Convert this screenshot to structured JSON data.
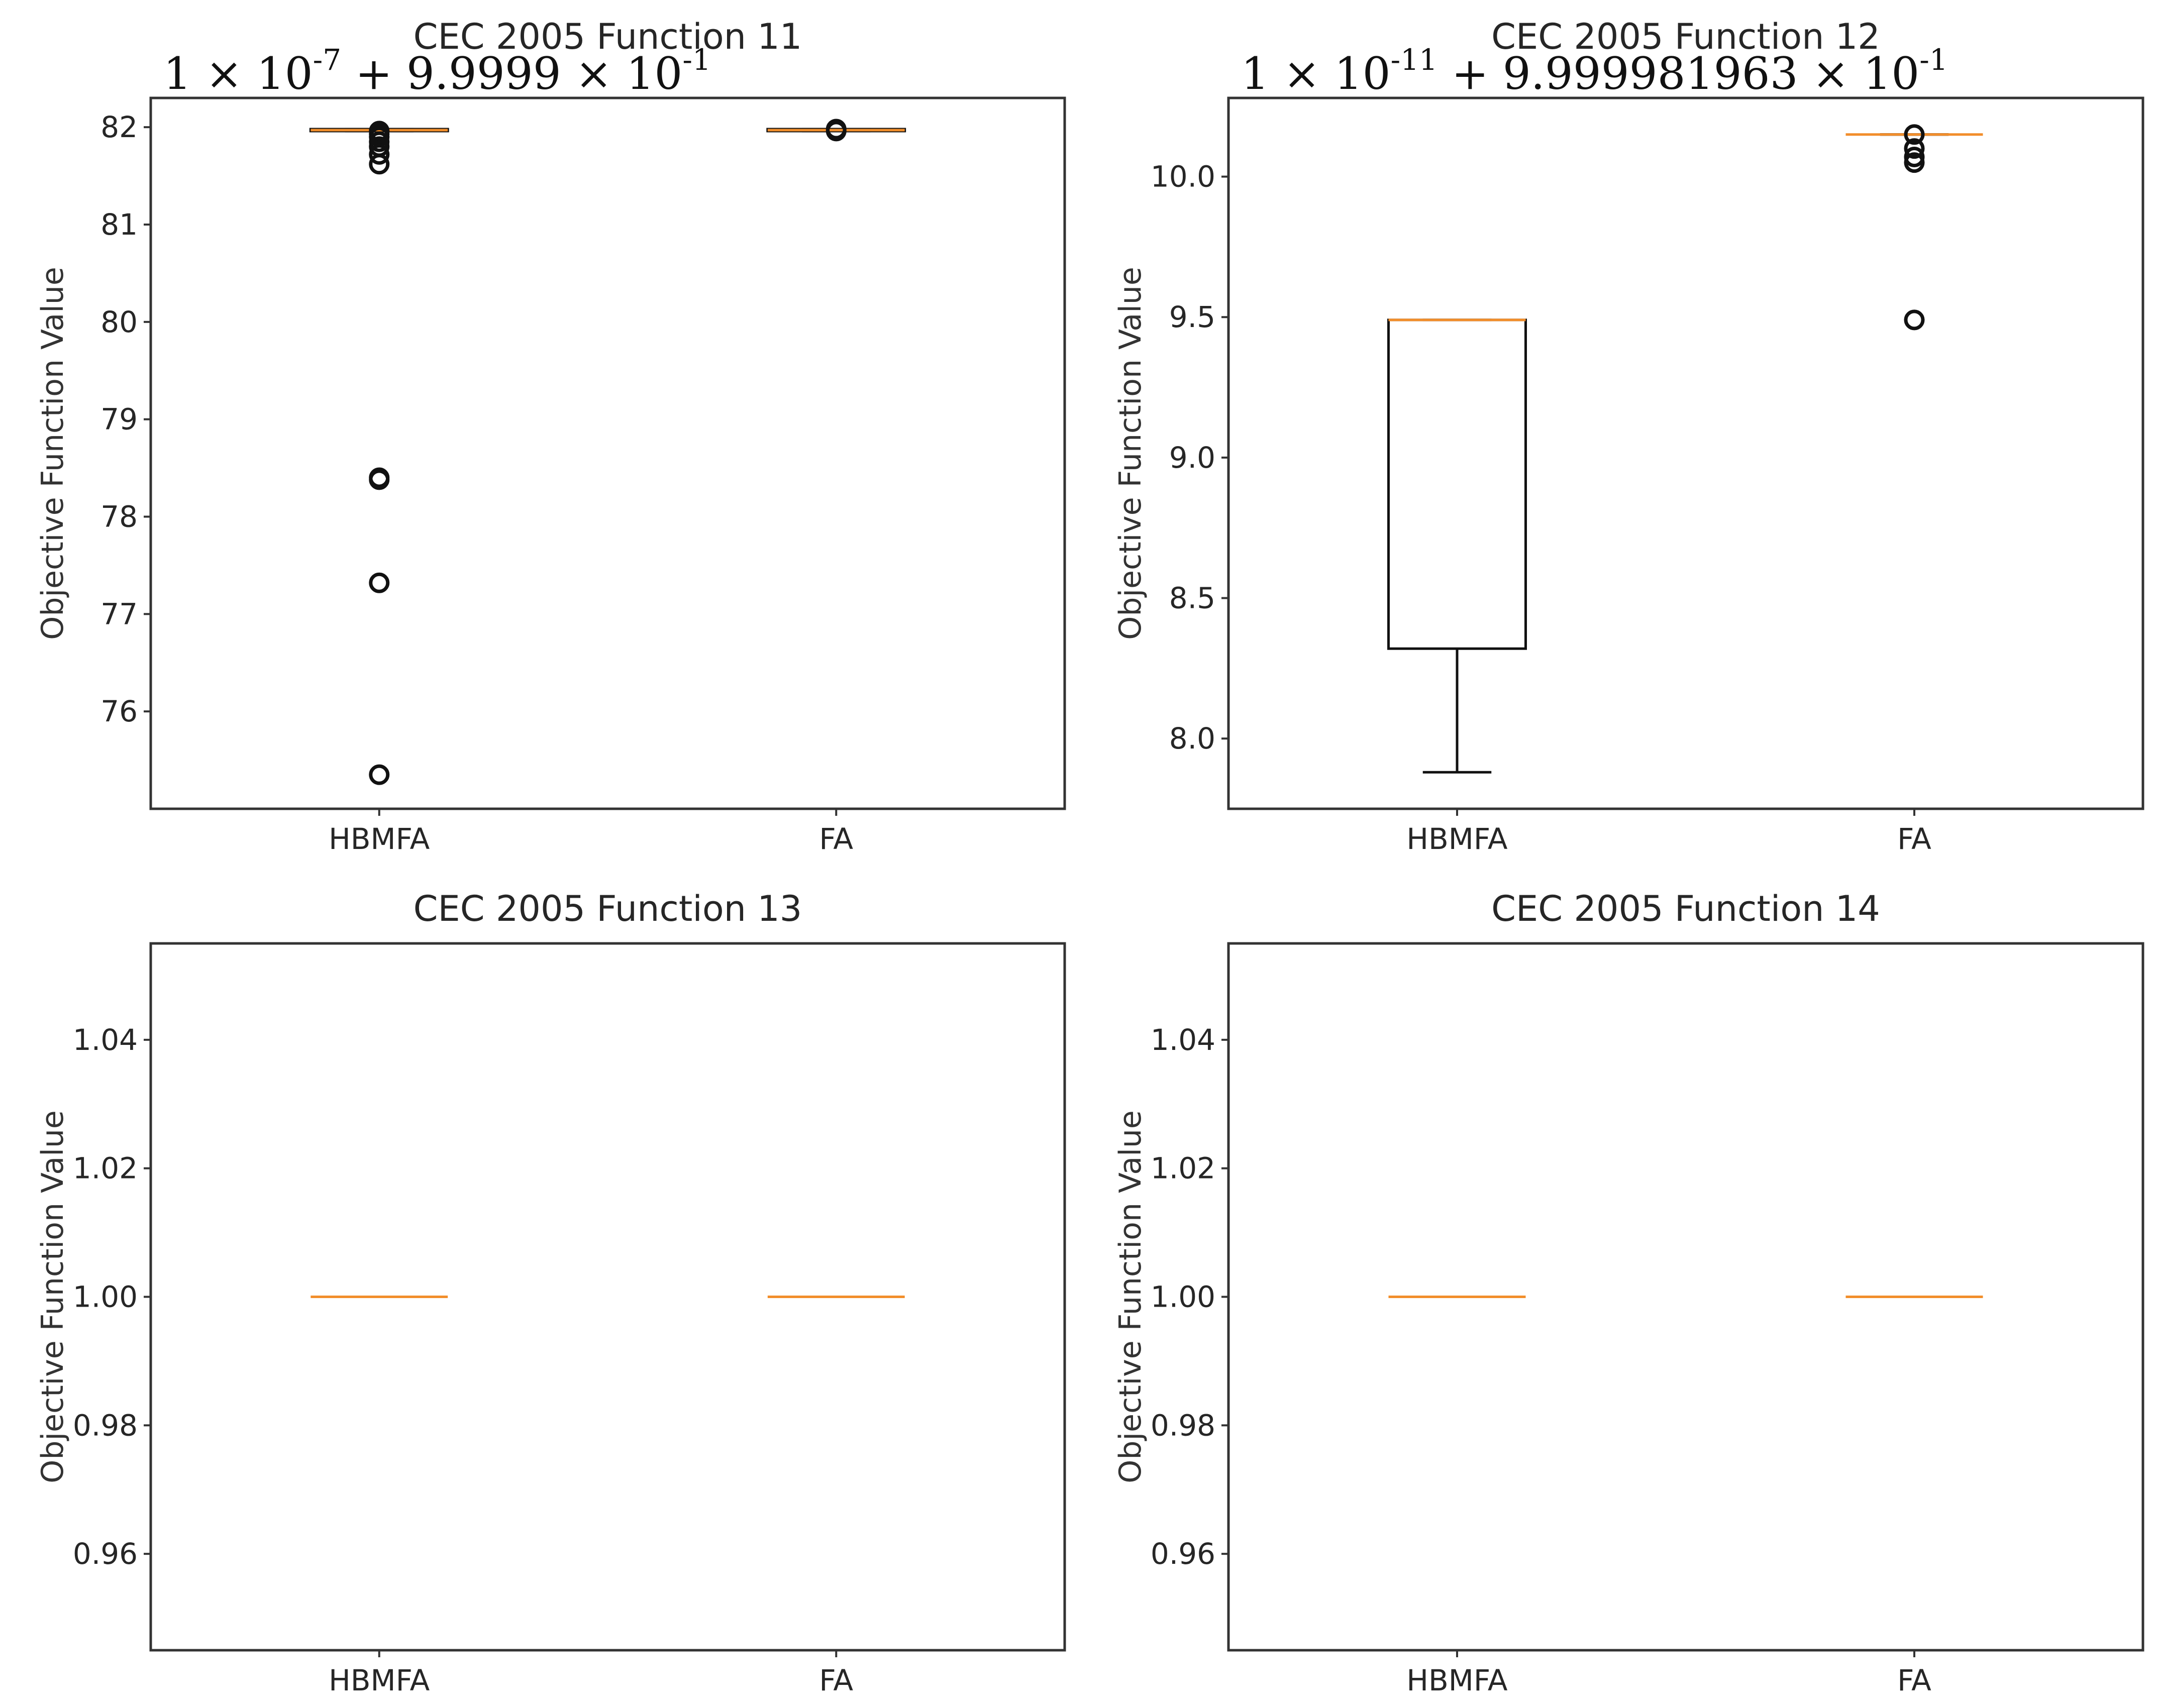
{
  "chart_data": [
    {
      "type": "box",
      "title": "CEC 2005 Function 11",
      "offset_text": {
        "prefix": "1 × 10",
        "exp1": "-7",
        "middle": " + 9.9999 × 10",
        "exp2": "-1"
      },
      "ylabel": "Objective Function Value",
      "categories": [
        "HBMFA",
        "FA"
      ],
      "ylim": [
        75.0,
        82.3
      ],
      "yticks": [
        76,
        77,
        78,
        79,
        80,
        81,
        82
      ],
      "ytick_labels": [
        "76",
        "77",
        "78",
        "79",
        "80",
        "81",
        "82"
      ],
      "boxes": [
        {
          "name": "HBMFA",
          "whisker_low": 81.96,
          "q1": 81.96,
          "median": 81.97,
          "q3": 81.98,
          "whisker_high": 81.98,
          "fliers": [
            81.96,
            81.93,
            81.9,
            81.85,
            81.8,
            81.72,
            81.62,
            78.4,
            78.38,
            77.32,
            75.35
          ]
        },
        {
          "name": "FA",
          "whisker_low": 81.96,
          "q1": 81.96,
          "median": 81.97,
          "q3": 81.98,
          "whisker_high": 81.98,
          "fliers": [
            81.98,
            81.96
          ]
        }
      ]
    },
    {
      "type": "box",
      "title": "CEC 2005 Function 12",
      "offset_text": {
        "prefix": "1 × 10",
        "exp1": "-11",
        "middle": " + 9.999981963 × 10",
        "exp2": "-1"
      },
      "ylabel": "Objective Function Value",
      "categories": [
        "HBMFA",
        "FA"
      ],
      "ylim": [
        7.75,
        10.28
      ],
      "yticks": [
        8.0,
        8.5,
        9.0,
        9.5,
        10.0
      ],
      "ytick_labels": [
        "8.0",
        "8.5",
        "9.0",
        "9.5",
        "10.0"
      ],
      "boxes": [
        {
          "name": "HBMFA",
          "whisker_low": 7.88,
          "q1": 8.32,
          "median": 9.49,
          "q3": 9.49,
          "whisker_high": 9.49,
          "fliers": []
        },
        {
          "name": "FA",
          "whisker_low": 10.15,
          "q1": 10.15,
          "median": 10.15,
          "q3": 10.15,
          "whisker_high": 10.15,
          "fliers": [
            10.15,
            10.1,
            10.07,
            10.05,
            9.49
          ]
        }
      ]
    },
    {
      "type": "box",
      "title": "CEC 2005 Function 13",
      "ylabel": "Objective Function Value",
      "categories": [
        "HBMFA",
        "FA"
      ],
      "ylim": [
        0.945,
        1.055
      ],
      "yticks": [
        0.96,
        0.98,
        1.0,
        1.02,
        1.04
      ],
      "ytick_labels": [
        "0.96",
        "0.98",
        "1.00",
        "1.02",
        "1.04"
      ],
      "boxes": [
        {
          "name": "HBMFA",
          "whisker_low": 1.0,
          "q1": 1.0,
          "median": 1.0,
          "q3": 1.0,
          "whisker_high": 1.0,
          "fliers": []
        },
        {
          "name": "FA",
          "whisker_low": 1.0,
          "q1": 1.0,
          "median": 1.0,
          "q3": 1.0,
          "whisker_high": 1.0,
          "fliers": []
        }
      ]
    },
    {
      "type": "box",
      "title": "CEC 2005 Function 14",
      "ylabel": "Objective Function Value",
      "categories": [
        "HBMFA",
        "FA"
      ],
      "ylim": [
        0.945,
        1.055
      ],
      "yticks": [
        0.96,
        0.98,
        1.0,
        1.02,
        1.04
      ],
      "ytick_labels": [
        "0.96",
        "0.98",
        "1.00",
        "1.02",
        "1.04"
      ],
      "boxes": [
        {
          "name": "HBMFA",
          "whisker_low": 1.0,
          "q1": 1.0,
          "median": 1.0,
          "q3": 1.0,
          "whisker_high": 1.0,
          "fliers": []
        },
        {
          "name": "FA",
          "whisker_low": 1.0,
          "q1": 1.0,
          "median": 1.0,
          "q3": 1.0,
          "whisker_high": 1.0,
          "fliers": []
        }
      ]
    }
  ]
}
